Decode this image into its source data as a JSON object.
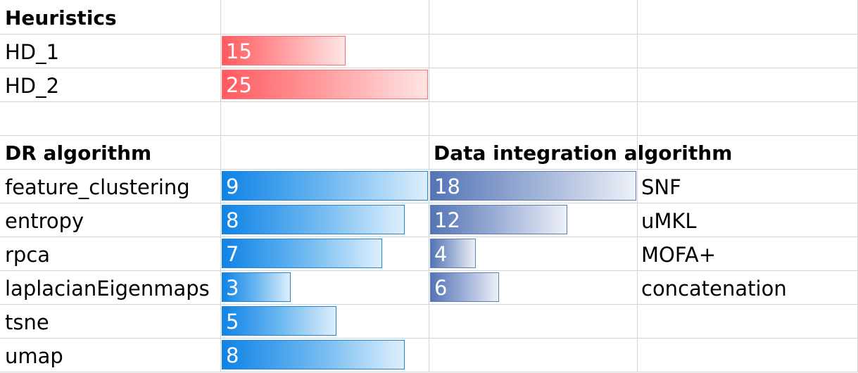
{
  "heuristics": {
    "title": "Heuristics",
    "rows": [
      {
        "label": "HD_1",
        "value": "15",
        "fill": 0.6
      },
      {
        "label": "HD_2",
        "value": "25",
        "fill": 1.0
      }
    ]
  },
  "dr": {
    "title": "DR algorithm",
    "rows": [
      {
        "label": "feature_clustering",
        "value": "9",
        "fill": 1.0
      },
      {
        "label": "entropy",
        "value": "8",
        "fill": 0.889
      },
      {
        "label": "rpca",
        "value": "7",
        "fill": 0.778
      },
      {
        "label": "laplacianEigenmaps",
        "value": "3",
        "fill": 0.333
      },
      {
        "label": "tsne",
        "value": "5",
        "fill": 0.556
      },
      {
        "label": "umap",
        "value": "8",
        "fill": 0.889
      }
    ]
  },
  "integration": {
    "title": "Data integration algorithm",
    "rows": [
      {
        "label": "SNF",
        "value": "18",
        "fill": 1.0
      },
      {
        "label": "uMKL",
        "value": "12",
        "fill": 0.667
      },
      {
        "label": "MOFA+",
        "value": "4",
        "fill": 0.222
      },
      {
        "label": "concatenation",
        "value": "6",
        "fill": 0.333
      }
    ]
  },
  "colors": {
    "heuristics_bar": "#ff5a5f",
    "dr_bar": "#0f83e6",
    "integration_bar": "#5474b5",
    "gridline": "#d4d4d4"
  }
}
